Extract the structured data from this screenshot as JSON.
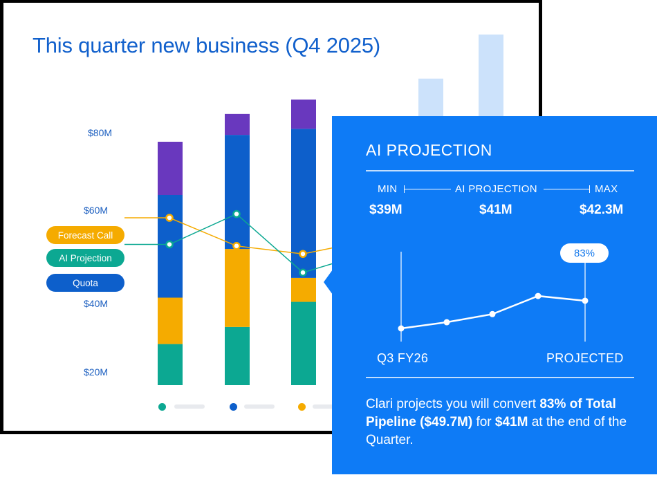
{
  "chart": {
    "title": "This quarter new business (Q4 2025)",
    "yticks": [
      "$80M",
      "$60M",
      "$40M",
      "$20M"
    ],
    "pills": [
      {
        "label": "Forecast Call",
        "color": "#f5ab00"
      },
      {
        "label": "AI Projection",
        "color": "#0ca892"
      },
      {
        "label": "Quota",
        "color": "#0d5fcb"
      }
    ],
    "legend_colors": [
      "#0ca892",
      "#0d5fcb",
      "#f5ab00"
    ],
    "colors": {
      "purple": "#6938be",
      "blue": "#0d5fcb",
      "yellow": "#f5ab00",
      "teal": "#0ca892",
      "light": "#cce2fb"
    }
  },
  "chart_data": {
    "type": "bar",
    "stacked": true,
    "yunits": "$M",
    "ylim": [
      10,
      100
    ],
    "series_stack_order": [
      "teal",
      "yellow",
      "blue",
      "purple"
    ],
    "bars": [
      {
        "teal": 10.8,
        "yellow": 12.2,
        "blue": 27.0,
        "purple": 14.0
      },
      {
        "teal": 15.3,
        "yellow": 20.5,
        "blue": 30.0,
        "purple": 5.5
      },
      {
        "teal": 21.9,
        "yellow": 6.3,
        "blue": 39.2,
        "purple": 7.7
      }
    ],
    "partial_bars": [
      {
        "light": 90.6
      },
      {
        "light": 102.2
      }
    ],
    "lines": [
      {
        "pill": "Forecast Call",
        "color": "#f5ab00",
        "values": [
          54.0,
          46.6,
          44.5,
          46.8
        ]
      },
      {
        "pill": "AI Projection",
        "color": "#0ca892",
        "values": [
          47.0,
          55.0,
          39.6,
          43.0
        ]
      }
    ]
  },
  "panel": {
    "title": "AI PROJECTION",
    "range": {
      "min_label": "MIN",
      "mid_label": "AI PROJECTION",
      "max_label": "MAX",
      "min_value": "$39M",
      "mid_value": "$41M",
      "max_value": "$42.3M"
    },
    "spark": {
      "start_label": "Q3 FY26",
      "end_label": "PROJECTED",
      "badge": "83%",
      "values": [
        0.0,
        0.13,
        0.3,
        0.68,
        0.58
      ]
    },
    "summary": {
      "p1": "Clari projects you will convert ",
      "b1": "83% of Total Pipeline ($49.7M)",
      "p2": " for ",
      "b2": "$41M",
      "p3": " at the end of the Quarter."
    }
  }
}
